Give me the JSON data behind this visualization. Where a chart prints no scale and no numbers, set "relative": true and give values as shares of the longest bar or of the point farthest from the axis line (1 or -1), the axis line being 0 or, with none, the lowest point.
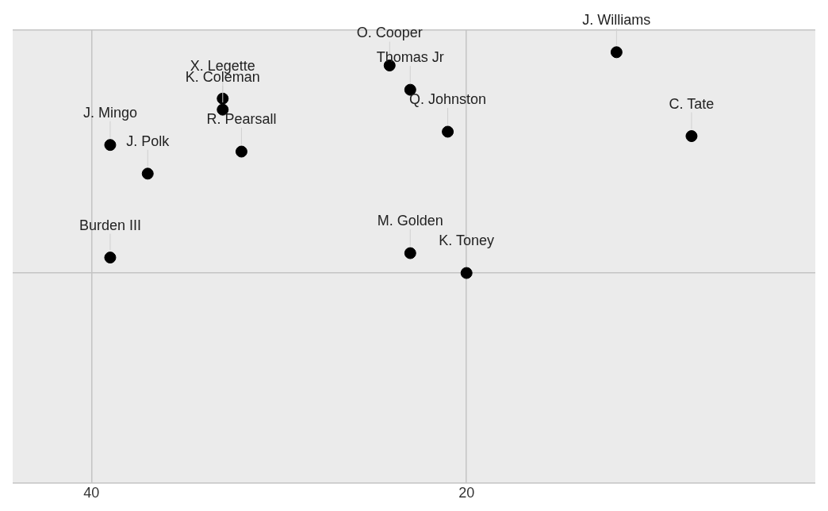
{
  "chart_data": {
    "type": "scatter",
    "relative": true,
    "x": [
      24.1,
      12.0,
      33.0,
      33.0,
      39.0,
      37.0,
      32.0,
      21.0,
      8.0,
      23.0,
      39.0,
      23.0,
      20.0
    ],
    "values": [
      0.94,
      1.0,
      0.79,
      0.74,
      0.58,
      0.45,
      0.55,
      0.64,
      0.62,
      0.83,
      0.07,
      0.09,
      0
    ],
    "color": "#000000",
    "marker": "circle",
    "xlim": [
      44.2,
      1.4
    ],
    "xticks": [
      40,
      20
    ],
    "grid": true,
    "tick_labels": "x",
    "legend": false,
    "annotations": [
      {
        "text": "O. Cooper",
        "x": 24.1,
        "y": 0.94
      },
      {
        "text": "J. Williams",
        "x": 12.0,
        "y": 1.0
      },
      {
        "text": "X. Legette",
        "x": 33.0,
        "y": 0.79
      },
      {
        "text": "K. Coleman",
        "x": 33.0,
        "y": 0.74
      },
      {
        "text": "J. Mingo",
        "x": 39.0,
        "y": 0.58
      },
      {
        "text": "J. Polk",
        "x": 37.0,
        "y": 0.45
      },
      {
        "text": "R. Pearsall",
        "x": 32.0,
        "y": 0.55
      },
      {
        "text": "Q. Johnston",
        "x": 21.0,
        "y": 0.64
      },
      {
        "text": "C. Tate",
        "x": 8.0,
        "y": 0.62
      },
      {
        "text": "Thomas Jr",
        "x": 23.0,
        "y": 0.83
      },
      {
        "text": "Burden III",
        "x": 39.0,
        "y": 0.07
      },
      {
        "text": "M. Golden",
        "x": 23.0,
        "y": 0.09
      },
      {
        "text": "K. Toney",
        "x": 20.0,
        "y": 0
      }
    ]
  }
}
